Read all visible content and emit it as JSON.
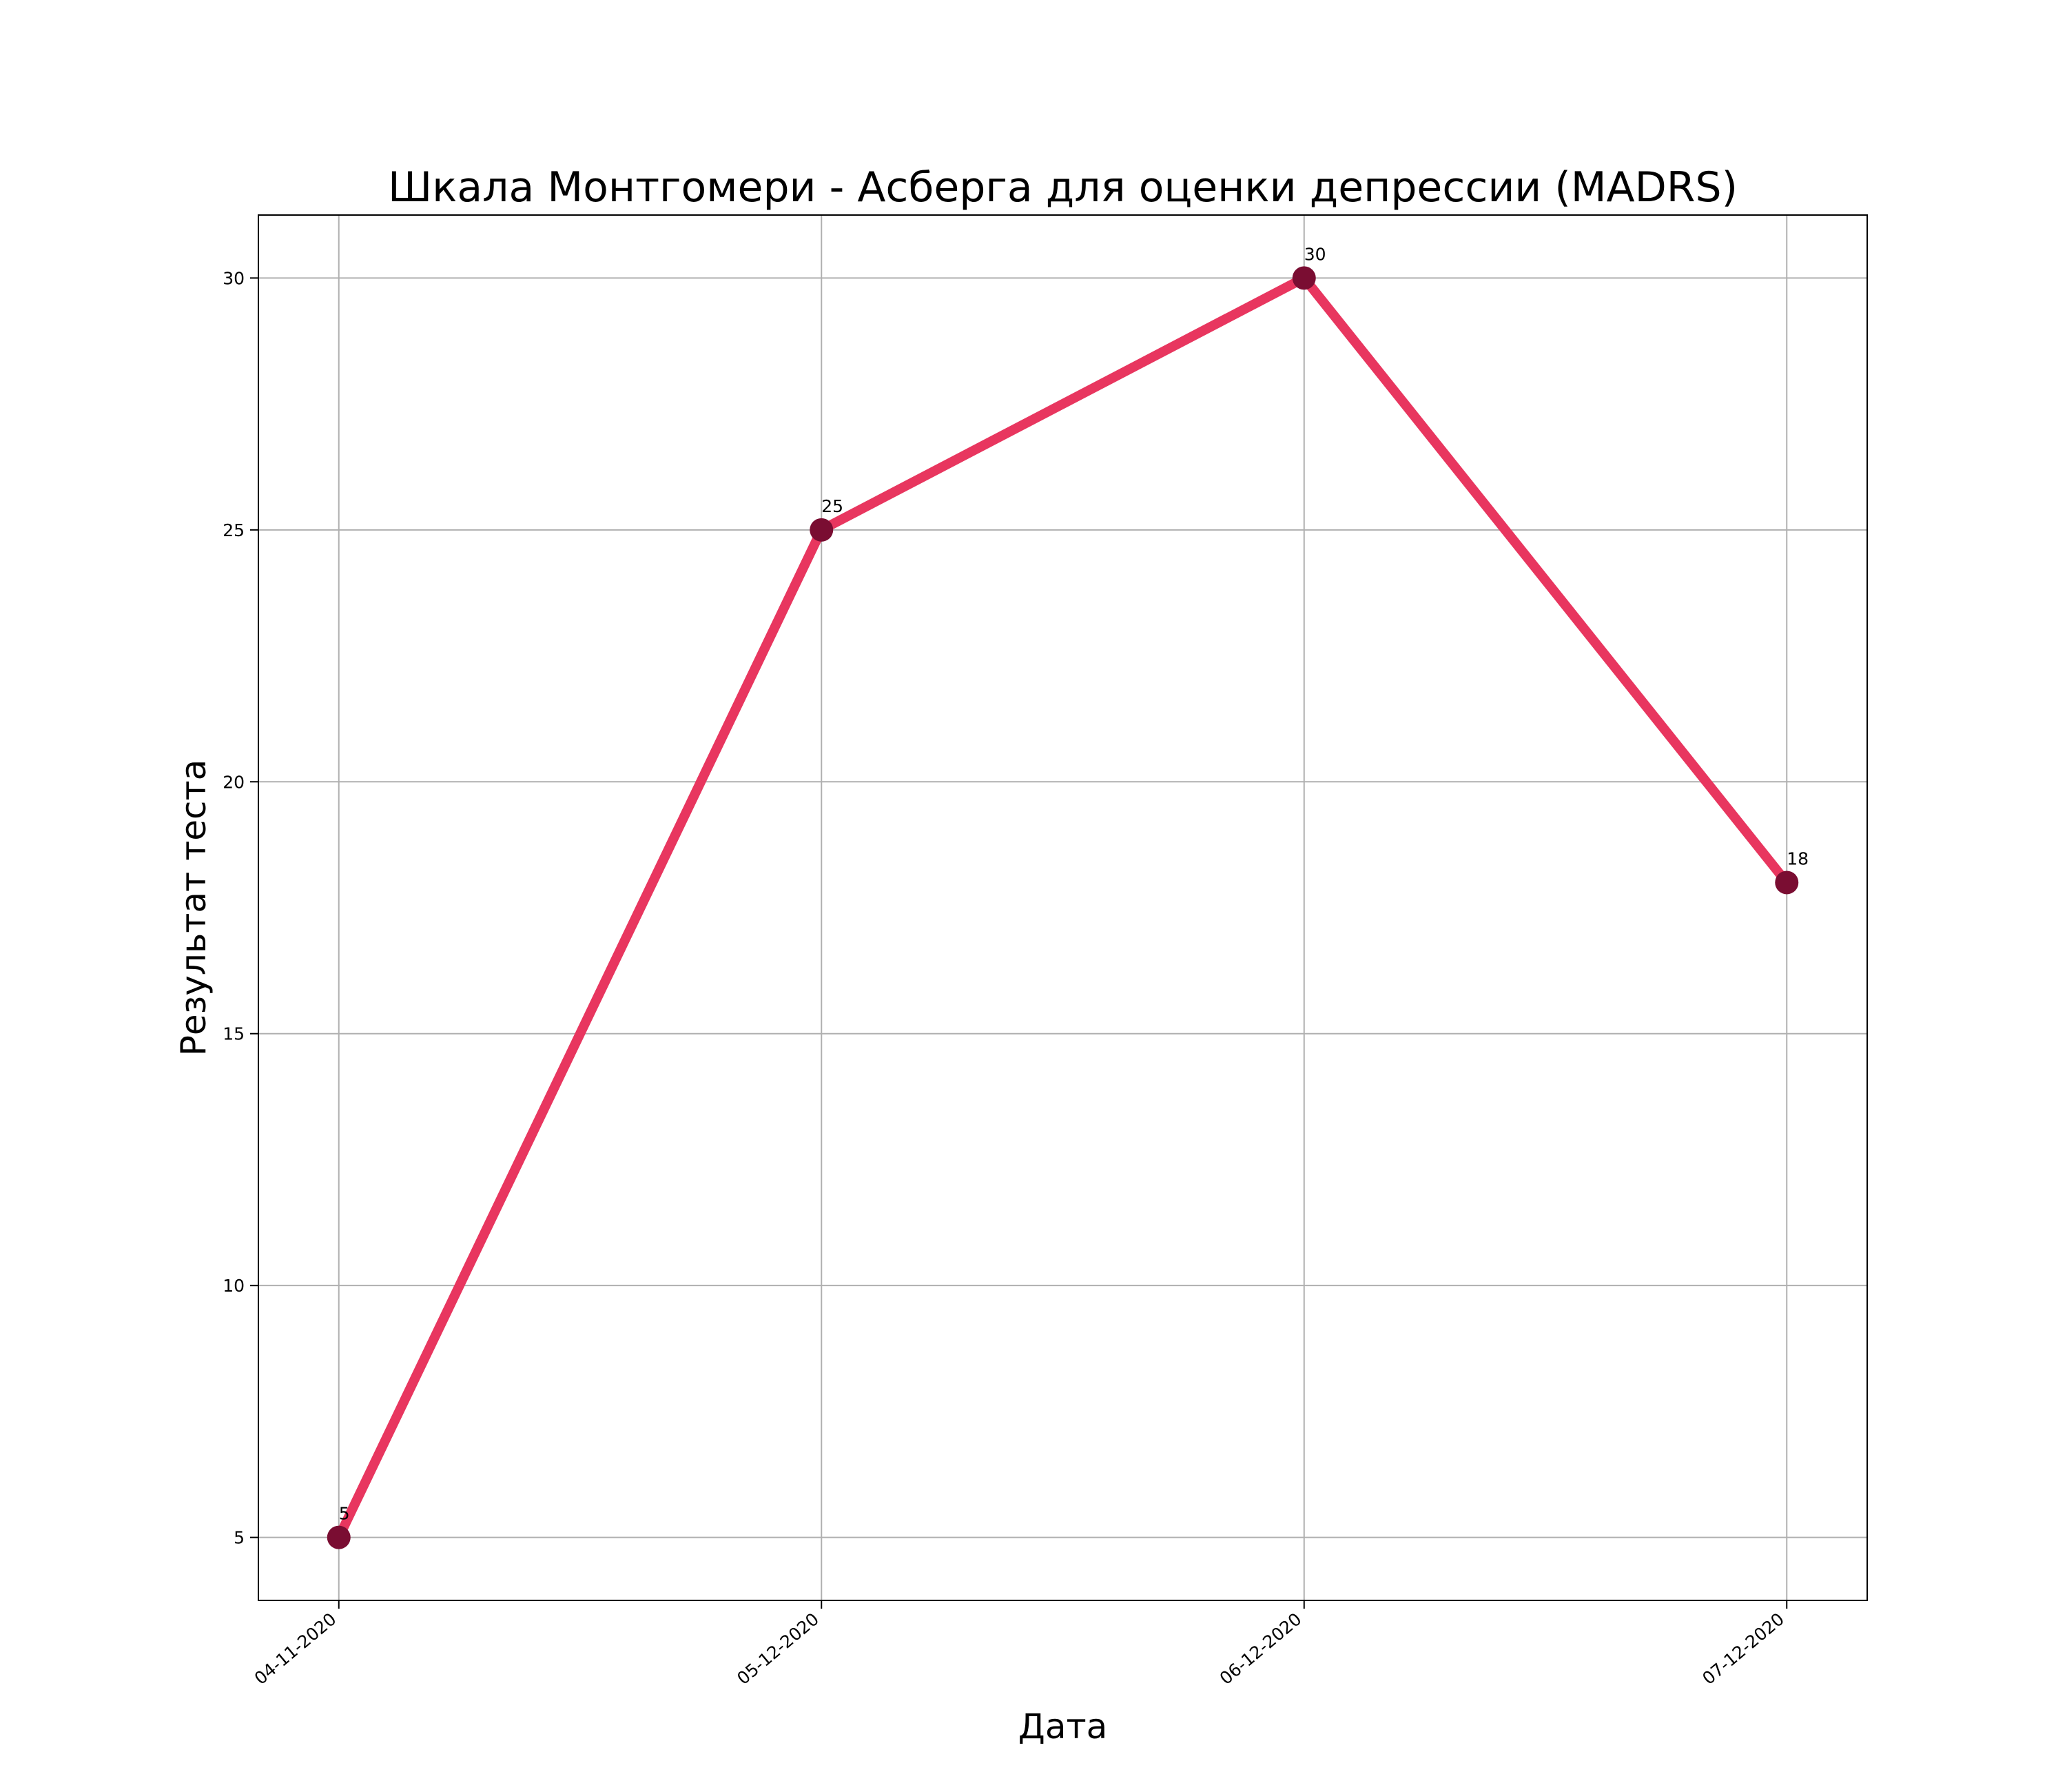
{
  "chart_data": {
    "type": "line",
    "title": "Шкала Монтгомери - Асберга для оценки депрессии (MADRS)",
    "xlabel": "Дата",
    "ylabel": "Результат теста",
    "categories": [
      "04-11-2020",
      "05-12-2020",
      "06-12-2020",
      "07-12-2020"
    ],
    "values": [
      5,
      25,
      30,
      18
    ],
    "data_labels": [
      "5",
      "25",
      "30",
      "18"
    ],
    "yticks": [
      5,
      10,
      15,
      20,
      25,
      30
    ],
    "ylim": [
      3.75,
      31.25
    ],
    "grid": true,
    "line_color": "#e8365f",
    "marker_color": "#7a0d32"
  }
}
